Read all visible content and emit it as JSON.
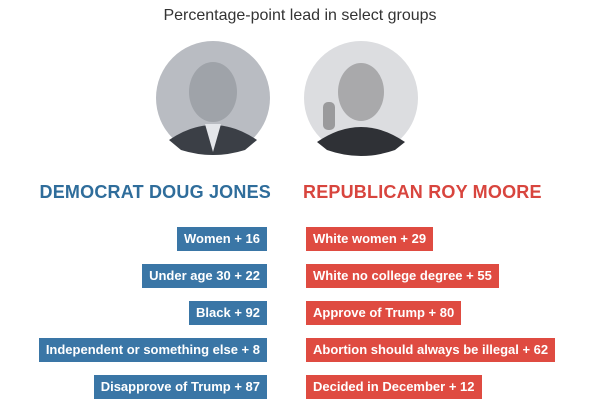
{
  "title": "Percentage-point lead in select groups",
  "democrat": {
    "heading": "DEMOCRAT DOUG JONES",
    "items": [
      "Women + 16",
      "Under age 30 + 22",
      "Black + 92",
      "Independent or something else + 8",
      "Disapprove of Trump + 87"
    ]
  },
  "republican": {
    "heading": "REPUBLICAN ROY MOORE",
    "items": [
      "White women + 29",
      "White no college degree + 55",
      "Approve of Trump + 80",
      "Abortion should always be illegal + 62",
      "Decided in December + 12"
    ]
  }
}
